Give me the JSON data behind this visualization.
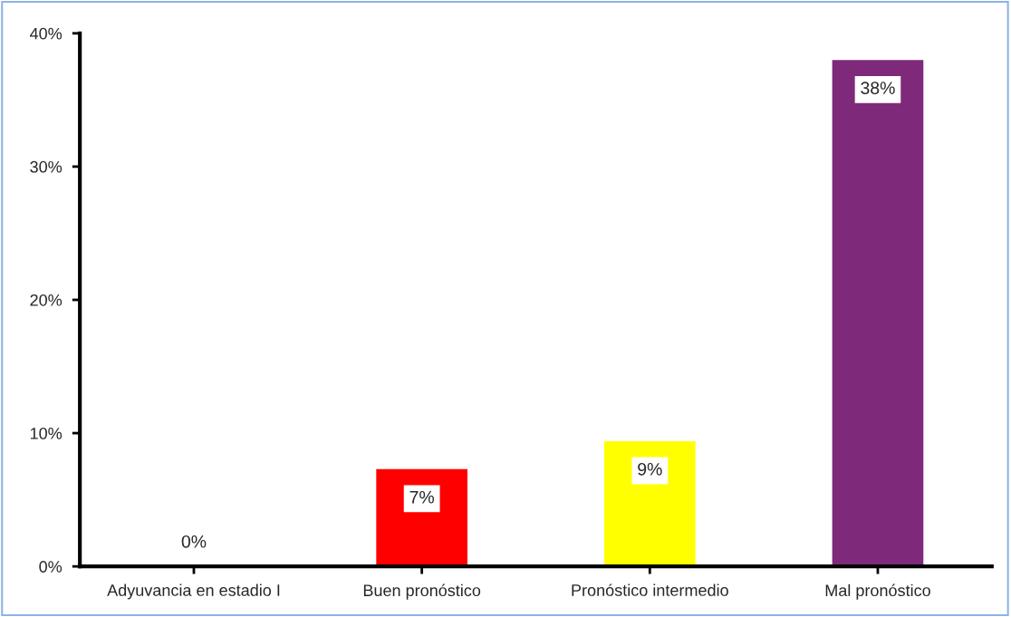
{
  "chart_data": {
    "type": "bar",
    "categories": [
      "Adyuvancia en estadio I",
      "Buen pronóstico",
      "Pronóstico intermedio",
      "Mal pronóstico"
    ],
    "values": [
      0,
      7.3,
      9.4,
      38
    ],
    "colors": [
      "#7f7f7f",
      "#ff0000",
      "#ffff00",
      "#7f297a"
    ],
    "value_labels": [
      "0%",
      "7%",
      "9%",
      "38%"
    ],
    "ylim": [
      0,
      40
    ],
    "yticks": [
      {
        "value": 0,
        "label": "0%"
      },
      {
        "value": 10,
        "label": "10%"
      },
      {
        "value": 20,
        "label": "20%"
      },
      {
        "value": 30,
        "label": "30%"
      },
      {
        "value": 40,
        "label": "40%"
      }
    ],
    "grid": false
  }
}
